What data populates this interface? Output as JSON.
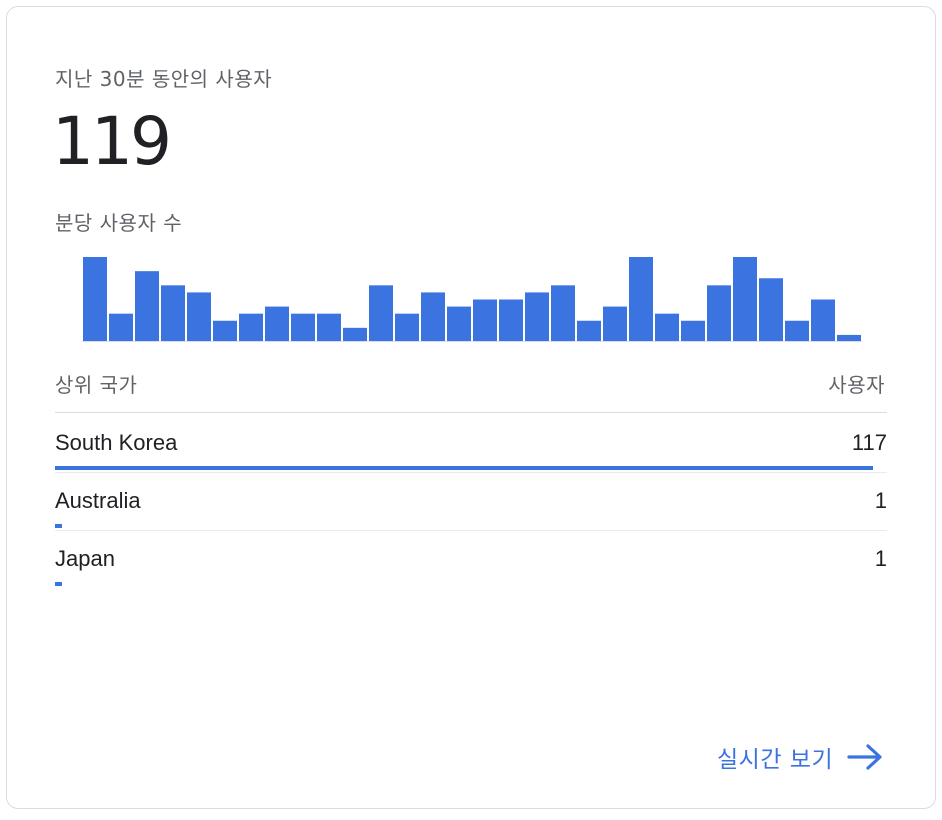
{
  "card": {
    "title": "지난 30분 동안의 사용자",
    "total_users": "119",
    "per_minute_label": "분당 사용자 수"
  },
  "chart_data": {
    "type": "bar",
    "title": "분당 사용자 수",
    "values": [
      6,
      2,
      5,
      4,
      3.5,
      1.5,
      2,
      2.5,
      2,
      2,
      1,
      4,
      2,
      3.5,
      2.5,
      3,
      3,
      3.5,
      4,
      1.5,
      2.5,
      6,
      2,
      1.5,
      4,
      6,
      4.5,
      1.5,
      3,
      0.5
    ],
    "ylim": [
      0,
      6
    ],
    "color": "#3b73e0"
  },
  "table": {
    "country_header": "상위 국가",
    "users_header": "사용자",
    "max_users": 117,
    "rows": [
      {
        "country": "South Korea",
        "users": "117",
        "share": 117
      },
      {
        "country": "Australia",
        "users": "1",
        "share": 1
      },
      {
        "country": "Japan",
        "users": "1",
        "share": 1
      }
    ]
  },
  "footer": {
    "view_realtime_label": "실시간 보기",
    "arrow_icon": "arrow-right-icon"
  },
  "colors": {
    "accent": "#3b73e0",
    "text_primary": "#202124",
    "text_secondary": "#5f6368",
    "divider": "#dadce0"
  }
}
